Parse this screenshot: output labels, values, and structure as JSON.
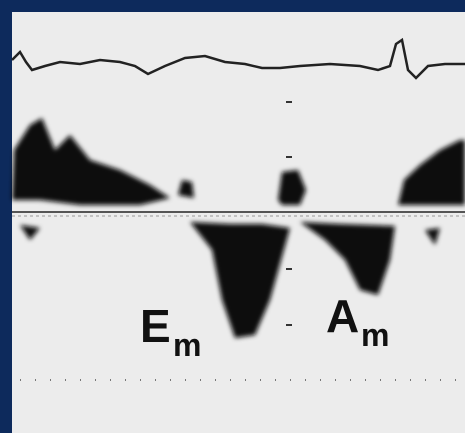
{
  "labels": [
    {
      "main": "E",
      "sub": "m"
    },
    {
      "main": "A",
      "sub": "m"
    }
  ]
}
